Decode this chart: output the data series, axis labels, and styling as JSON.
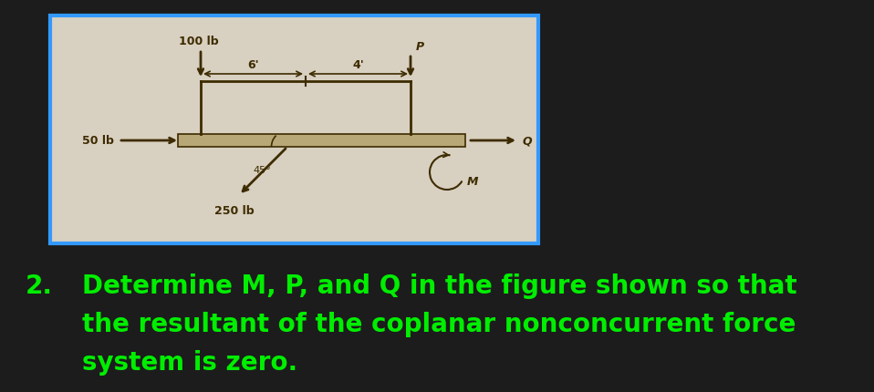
{
  "bg_color": "#1c1c1c",
  "diagram_bg": "#d8d0c0",
  "diagram_border": "#3399ff",
  "text_color_green": "#00ee00",
  "text_color_dark": "#3d2b00",
  "number_label": "2.",
  "question_line1": "Determine M, P, and Q in the figure shown so that",
  "question_line2": "the resultant of the coplanar nonconcurrent force",
  "question_line3": "system is zero.",
  "force_100": "100 lb",
  "force_50": "50 lb",
  "force_250": "250 lb",
  "label_P": "P",
  "label_Q": "Q",
  "label_M": "M",
  "dim_6": "6'",
  "dim_4": "4'",
  "angle_45": "45°"
}
